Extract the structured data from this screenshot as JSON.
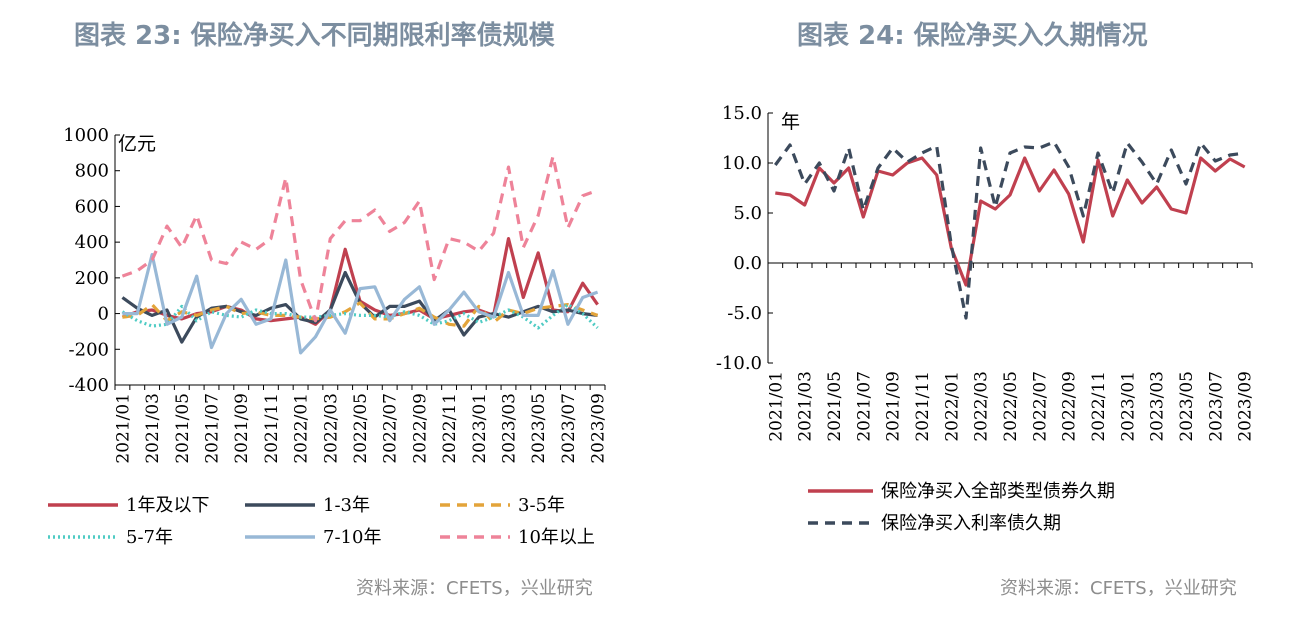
{
  "chart_data": [
    {
      "type": "line",
      "title": "图表 23: 保险净买入不同期限利率债规模",
      "unit_label": "亿元",
      "ylim": [
        -400,
        1000
      ],
      "yticks": [
        -400,
        -200,
        0,
        200,
        400,
        600,
        800,
        1000
      ],
      "x": [
        "2021/01",
        "2021/02",
        "2021/03",
        "2021/04",
        "2021/05",
        "2021/06",
        "2021/07",
        "2021/08",
        "2021/09",
        "2021/10",
        "2021/11",
        "2021/12",
        "2022/01",
        "2022/02",
        "2022/03",
        "2022/04",
        "2022/05",
        "2022/06",
        "2022/07",
        "2022/08",
        "2022/09",
        "2022/10",
        "2022/11",
        "2022/12",
        "2023/01",
        "2023/02",
        "2023/03",
        "2023/04",
        "2023/05",
        "2023/06",
        "2023/07",
        "2023/08",
        "2023/09"
      ],
      "xtick_labels": [
        "2021/01",
        "2021/03",
        "2021/05",
        "2021/07",
        "2021/09",
        "2021/11",
        "2022/01",
        "2022/03",
        "2022/05",
        "2022/07",
        "2022/09",
        "2022/11",
        "2023/01",
        "2023/03",
        "2023/05",
        "2023/07",
        "2023/09"
      ],
      "legend_position": "bottom",
      "source": "资料来源：CFETS，兴业研究",
      "series": [
        {
          "name": "1年及以下",
          "color": "#c0404f",
          "style": "solid",
          "values": [
            -20,
            10,
            20,
            -10,
            -30,
            0,
            10,
            40,
            20,
            -30,
            -40,
            -30,
            -20,
            -60,
            20,
            360,
            70,
            20,
            -10,
            0,
            20,
            -30,
            -10,
            10,
            20,
            -10,
            420,
            90,
            340,
            20,
            10,
            170,
            50
          ]
        },
        {
          "name": "1-3年",
          "color": "#3c4a5c",
          "style": "solid",
          "values": [
            90,
            30,
            -10,
            20,
            -160,
            -20,
            30,
            40,
            10,
            -10,
            30,
            50,
            -30,
            -50,
            20,
            230,
            60,
            -20,
            40,
            40,
            70,
            -40,
            20,
            -120,
            -20,
            0,
            -20,
            10,
            40,
            10,
            20,
            0,
            -10
          ]
        },
        {
          "name": "3-5年",
          "color": "#e3a43a",
          "style": "dashed",
          "values": [
            -20,
            -10,
            50,
            -40,
            10,
            -10,
            20,
            40,
            0,
            10,
            -10,
            -10,
            -20,
            -30,
            -20,
            10,
            60,
            -30,
            -30,
            0,
            30,
            -20,
            -60,
            -70,
            40,
            -50,
            20,
            0,
            30,
            40,
            50,
            20,
            -10
          ]
        },
        {
          "name": "5-7年",
          "color": "#4fcbc4",
          "style": "dotted",
          "values": [
            10,
            -40,
            -70,
            -60,
            40,
            -40,
            10,
            -10,
            -20,
            20,
            0,
            0,
            -20,
            -20,
            -10,
            0,
            -10,
            -10,
            -20,
            10,
            -10,
            -60,
            -40,
            0,
            -50,
            -20,
            20,
            -20,
            -80,
            -10,
            50,
            0,
            -80
          ]
        },
        {
          "name": "7-10年",
          "color": "#98b8d6",
          "style": "solid",
          "values": [
            0,
            0,
            330,
            -60,
            -20,
            210,
            -190,
            0,
            80,
            -60,
            -30,
            300,
            -220,
            -130,
            20,
            -110,
            140,
            150,
            -40,
            80,
            150,
            -60,
            20,
            120,
            10,
            -20,
            230,
            -10,
            -10,
            240,
            -60,
            90,
            120
          ]
        },
        {
          "name": "10年以上",
          "color": "#ee8399",
          "style": "dashed",
          "values": [
            210,
            240,
            300,
            490,
            370,
            550,
            300,
            280,
            400,
            360,
            420,
            760,
            190,
            -40,
            420,
            520,
            520,
            580,
            460,
            510,
            630,
            190,
            420,
            400,
            350,
            450,
            820,
            370,
            550,
            880,
            480,
            660,
            690
          ]
        }
      ]
    },
    {
      "type": "line",
      "title": "图表 24: 保险净买入久期情况",
      "unit_label": "年",
      "ylim": [
        -10,
        15
      ],
      "yticks": [
        -10.0,
        -5.0,
        0.0,
        5.0,
        10.0,
        15.0
      ],
      "ytick_labels": [
        "-10.0",
        "-5.0",
        "0.0",
        "5.0",
        "10.0",
        "15.0"
      ],
      "x": [
        "2021/01",
        "2021/02",
        "2021/03",
        "2021/04",
        "2021/05",
        "2021/06",
        "2021/07",
        "2021/08",
        "2021/09",
        "2021/10",
        "2021/11",
        "2021/12",
        "2022/01",
        "2022/02",
        "2022/03",
        "2022/04",
        "2022/05",
        "2022/06",
        "2022/07",
        "2022/08",
        "2022/09",
        "2022/10",
        "2022/11",
        "2022/12",
        "2023/01",
        "2023/02",
        "2023/03",
        "2023/04",
        "2023/05",
        "2023/06",
        "2023/07",
        "2023/08",
        "2023/09"
      ],
      "xtick_labels": [
        "2021/01",
        "2021/03",
        "2021/05",
        "2021/07",
        "2021/09",
        "2021/11",
        "2022/01",
        "2022/03",
        "2022/05",
        "2022/07",
        "2022/09",
        "2022/11",
        "2023/01",
        "2023/03",
        "2023/05",
        "2023/07",
        "2023/09"
      ],
      "legend_position": "bottom",
      "source": "资料来源：CFETS，兴业研究",
      "series": [
        {
          "name": "保险净买入全部类型债券久期",
          "color": "#c0404f",
          "style": "solid",
          "values": [
            7.0,
            6.8,
            5.8,
            9.5,
            8.0,
            9.5,
            4.6,
            9.2,
            8.8,
            10.0,
            10.5,
            8.8,
            1.5,
            -2.2,
            6.2,
            5.4,
            6.8,
            10.5,
            7.2,
            9.3,
            6.9,
            2.1,
            10.3,
            4.7,
            8.3,
            6.0,
            7.6,
            5.4,
            5.0,
            10.5,
            9.2,
            10.4,
            9.6
          ]
        },
        {
          "name": "保险净买入利率债久期",
          "color": "#3c4a5c",
          "style": "dashed",
          "values": [
            9.8,
            11.8,
            7.9,
            10.0,
            7.2,
            11.5,
            5.3,
            9.5,
            11.5,
            10.1,
            11.0,
            11.7,
            1.8,
            -5.5,
            11.5,
            5.6,
            11.0,
            11.6,
            11.5,
            12.1,
            9.6,
            4.7,
            11.0,
            7.0,
            12.0,
            10.1,
            7.9,
            11.3,
            7.9,
            12.0,
            10.2,
            10.8,
            11.0
          ]
        }
      ]
    }
  ]
}
